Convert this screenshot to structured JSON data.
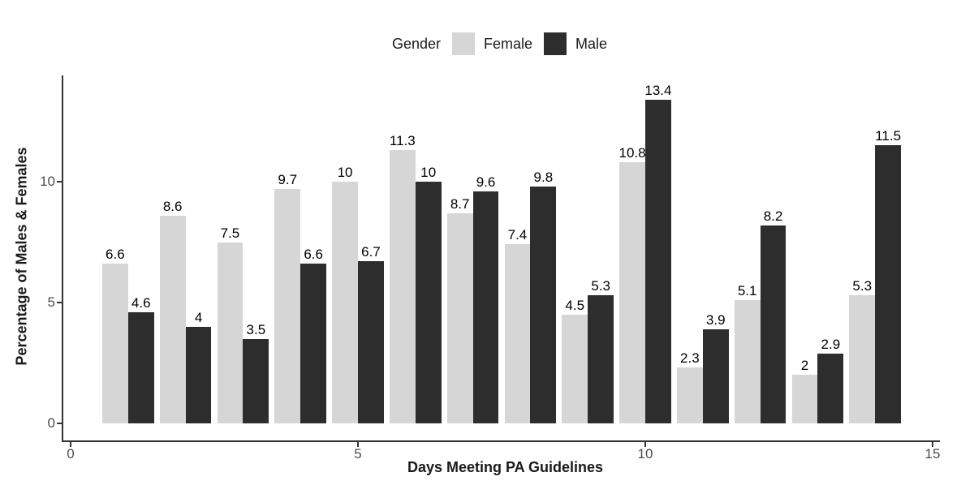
{
  "chart_data": {
    "type": "bar",
    "title": "",
    "xlabel": "Days Meeting PA Guidelines",
    "ylabel": "Percentage of Males & Females",
    "legend": {
      "title": "Gender",
      "position": "top-center"
    },
    "categories": [
      1,
      2,
      3,
      4,
      5,
      6,
      7,
      8,
      9,
      10,
      11,
      12,
      13,
      14
    ],
    "series": [
      {
        "name": "Female",
        "color": "#d6d6d6",
        "values": [
          6.6,
          8.6,
          7.5,
          9.7,
          10,
          11.3,
          8.7,
          7.4,
          4.5,
          10.8,
          2.3,
          5.1,
          2,
          5.3
        ]
      },
      {
        "name": "Male",
        "color": "#2d2d2d",
        "values": [
          4.6,
          4,
          3.5,
          6.6,
          6.7,
          10,
          9.6,
          9.8,
          5.3,
          13.4,
          3.9,
          8.2,
          2.9,
          11.5
        ]
      }
    ],
    "x_ticks": [
      0,
      5,
      10,
      15
    ],
    "y_ticks": [
      0,
      5,
      10
    ],
    "xlim": [
      0,
      15
    ],
    "ylim": [
      0,
      14.1
    ],
    "grid": false,
    "bar_labels_shown": true,
    "axis_color": "#333333",
    "tick_label_color": "#4d4d4d",
    "value_label_color": "#000000"
  }
}
